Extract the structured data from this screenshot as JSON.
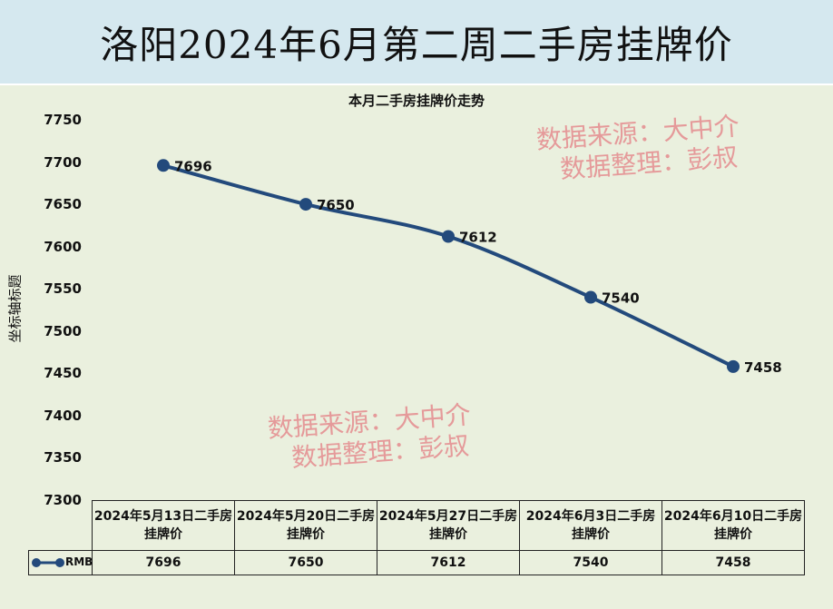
{
  "title": "洛阳2024年6月第二周二手房挂牌价",
  "watermark": {
    "line1": "数据来源：大中介",
    "line2": "数据整理：彭叔"
  },
  "colors": {
    "series": "#234a7c",
    "banner": "#d5e8ef",
    "plot_bg": "#eaf0de",
    "watermark": "#e59a9a"
  },
  "chart_data": {
    "type": "line",
    "title": "本月二手房挂牌价走势",
    "xlabel": "",
    "ylabel": "坐标轴标题",
    "ylim": [
      7300,
      7750
    ],
    "yticks": [
      7750,
      7700,
      7650,
      7600,
      7550,
      7500,
      7450,
      7400,
      7350,
      7300
    ],
    "categories": [
      "2024年5月13日二手房挂牌价",
      "2024年5月20日二手房挂牌价",
      "2024年5月27日二手房挂牌价",
      "2024年6月3日二手房挂牌价",
      "2024年6月10日二手房挂牌价"
    ],
    "series": [
      {
        "name": "RMB",
        "values": [
          7696,
          7650,
          7612,
          7540,
          7458
        ]
      }
    ],
    "data_labels": true,
    "legend": "data-table",
    "grid": false
  }
}
